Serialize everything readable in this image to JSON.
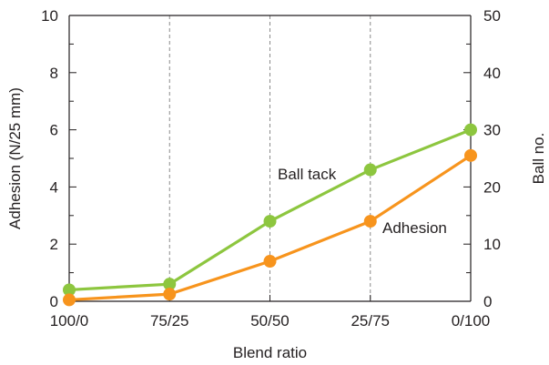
{
  "chart_data": {
    "type": "line",
    "x_categories": [
      "100/0",
      "75/25",
      "50/50",
      "25/75",
      "0/100"
    ],
    "xlabel": "Blend ratio",
    "y_left": {
      "label": "Adhesion (N/25 mm)",
      "ylim": [
        0,
        10
      ],
      "ticks": [
        "0",
        "2",
        "4",
        "6",
        "8",
        "10"
      ]
    },
    "y_right": {
      "label": "Ball no.",
      "ylim": [
        0,
        50
      ],
      "ticks": [
        "0",
        "10",
        "20",
        "30",
        "40",
        "50"
      ]
    },
    "grid": "vertical dashed at categories",
    "series": [
      {
        "name": "Ball tack",
        "axis": "right",
        "color": "#8dc63f",
        "values": [
          2,
          3,
          14,
          23,
          30
        ]
      },
      {
        "name": "Adhesion",
        "axis": "left",
        "color": "#f7941d",
        "values": [
          0.05,
          0.25,
          1.4,
          2.8,
          5.1
        ]
      }
    ]
  }
}
